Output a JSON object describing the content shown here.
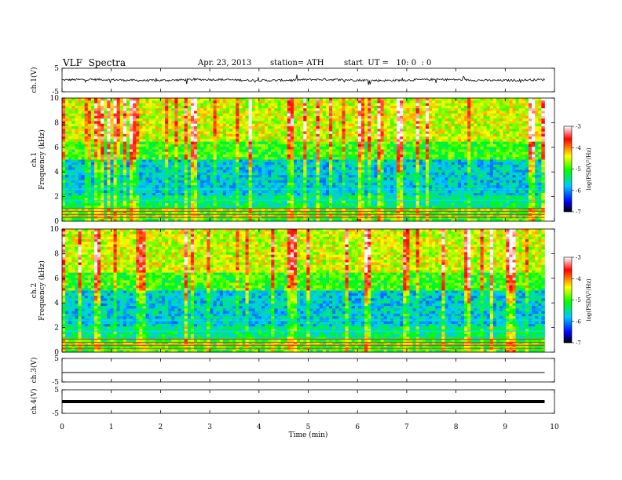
{
  "header": {
    "title": "VLF  Spectra",
    "date": "Apr. 23, 2013",
    "station": "station= ATH",
    "start": "start  UT =   10: 0  : 0"
  },
  "colors": {
    "spectrogram_scale": [
      "#000000",
      "#0000ff",
      "#00c8ff",
      "#00ff00",
      "#ffff00",
      "#ff0000",
      "#ffffff"
    ]
  },
  "chart_data": [
    {
      "type": "line",
      "name": "ch1-waveform",
      "ylabel": "ch.1(V)",
      "ylim": [
        -5,
        5
      ],
      "yticks": [
        "5",
        "-5"
      ],
      "x_range_min": [
        0,
        9.8
      ],
      "appearance": "noisy waveform near 0 V with spikes"
    },
    {
      "type": "heatmap",
      "name": "ch1-spectrogram",
      "ylabel": "ch.1\nFrequency  (kHz)",
      "ylim": [
        0,
        10
      ],
      "yticks": [
        "0",
        "2",
        "4",
        "6",
        "8",
        "10"
      ],
      "x_range_min": [
        0,
        9.8
      ],
      "colorbar": {
        "label": "log(PSD(V²/Hz)",
        "range": [
          -7,
          -3
        ],
        "ticks": [
          "-3",
          "-4",
          "-5",
          "-6",
          "-7"
        ]
      }
    },
    {
      "type": "heatmap",
      "name": "ch2-spectrogram",
      "ylabel": "ch.2\nFrequency  (kHz)",
      "ylim": [
        0,
        10
      ],
      "yticks": [
        "0",
        "2",
        "4",
        "6",
        "8",
        "10"
      ],
      "x_range_min": [
        0,
        9.8
      ],
      "colorbar": {
        "label": "log(PSD(V²/Hz)",
        "range": [
          -7,
          -3
        ],
        "ticks": [
          "-3",
          "-4",
          "-5",
          "-6",
          "-7"
        ]
      }
    },
    {
      "type": "line",
      "name": "ch3-waveform",
      "ylabel": "ch.3(V)",
      "ylim": [
        -5,
        5
      ],
      "yticks": [
        "5",
        "-5"
      ],
      "x_range_min": [
        0,
        9.8
      ],
      "appearance": "flat line near -1 V"
    },
    {
      "type": "line",
      "name": "ch4-waveform",
      "ylabel": "ch.4(V)",
      "ylim": [
        -5,
        5
      ],
      "yticks": [
        "5",
        "-5"
      ],
      "x_range_min": [
        0,
        9.8
      ],
      "appearance": "thick flat line near 0 V"
    }
  ],
  "xaxis": {
    "label": "Time  (min)",
    "ticks": [
      "0",
      "1",
      "2",
      "3",
      "4",
      "5",
      "6",
      "7",
      "8",
      "9",
      "10"
    ],
    "range": [
      0,
      10
    ]
  }
}
